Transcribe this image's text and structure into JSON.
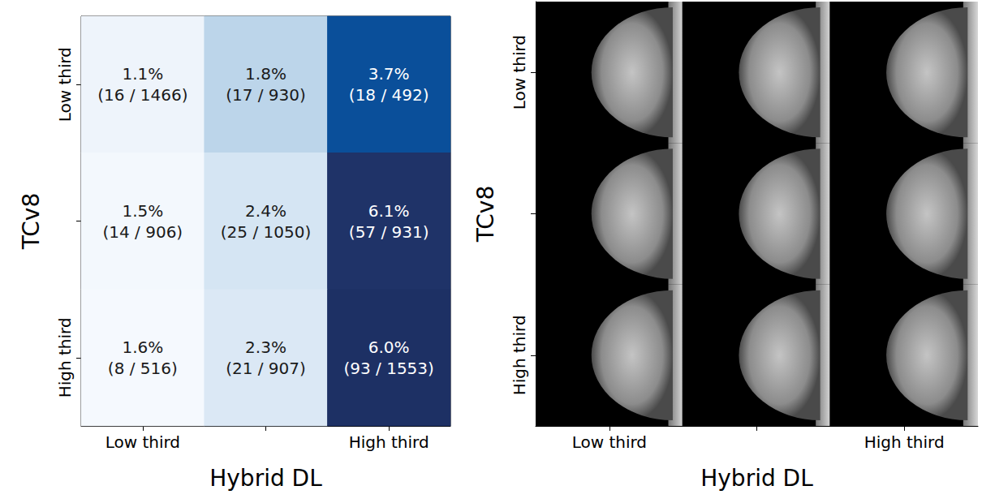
{
  "chart_data": [
    {
      "type": "heatmap",
      "x_label": "Hybrid DL",
      "y_label": "TCv8",
      "categories": [
        "Low third",
        null,
        "High third"
      ],
      "y_categories": [
        "Low third",
        null,
        "High third"
      ],
      "values": [
        [
          1.1,
          1.8,
          3.7
        ],
        [
          1.5,
          2.4,
          6.1
        ],
        [
          1.6,
          2.3,
          6.0
        ]
      ],
      "value_labels": [
        [
          "1.1%",
          "1.8%",
          "3.7%"
        ],
        [
          "1.5%",
          "2.4%",
          "6.1%"
        ],
        [
          "1.6%",
          "2.3%",
          "6.0%"
        ]
      ],
      "count_labels": [
        [
          "(16 / 1466)",
          "(17 / 930)",
          "(18 / 492)"
        ],
        [
          "(14 / 906)",
          "(25 / 1050)",
          "(57 / 931)"
        ],
        [
          "(8 / 516)",
          "(21 / 907)",
          "(93 / 1553)"
        ]
      ],
      "colors": [
        [
          "#eef4fb",
          "#bcd5ea",
          "#0a4f9a"
        ],
        [
          "#f3f8fd",
          "#d5e5f3",
          "#1f3368"
        ],
        [
          "#f5f9fe",
          "#dbe8f5",
          "#1d3064"
        ]
      ]
    },
    {
      "type": "image_grid",
      "x_label": "Hybrid DL",
      "y_label": "TCv8",
      "categories": [
        "Low third",
        null,
        "High third"
      ],
      "y_categories": [
        "Low third",
        null,
        "High third"
      ]
    }
  ]
}
